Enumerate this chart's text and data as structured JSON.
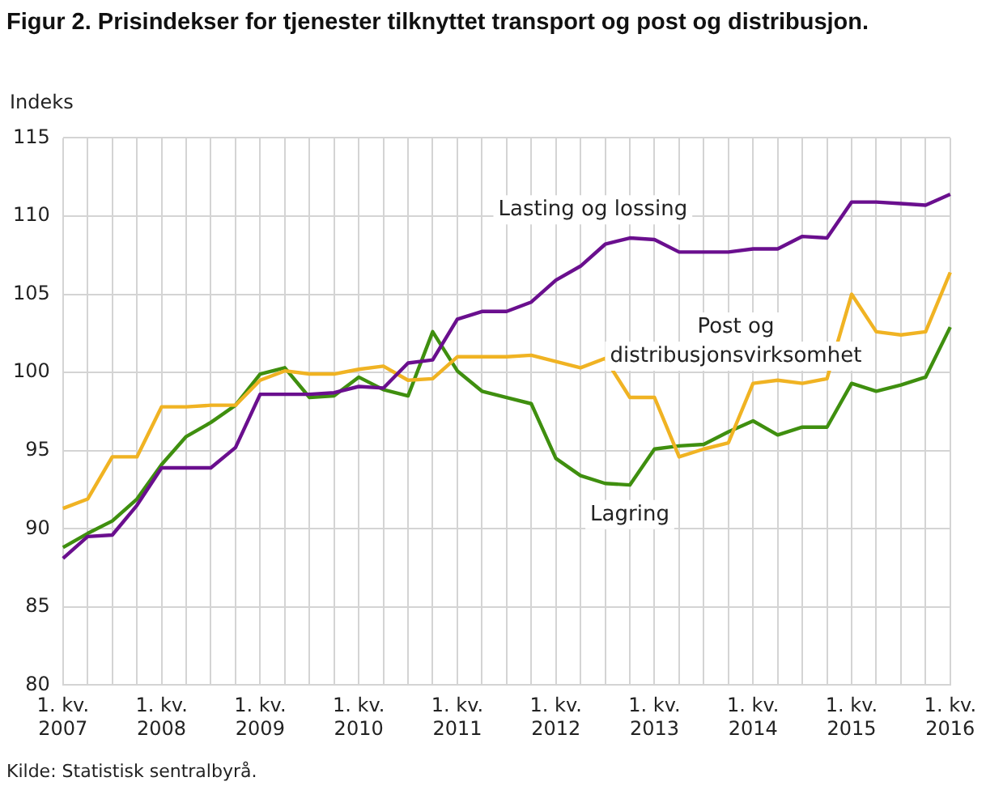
{
  "chart_data": {
    "type": "line",
    "title": "Figur 2. Prisindekser for tjenester tilknyttet transport og post og distribusjon.",
    "ylabel": "Indeks",
    "categories": [
      "1. kv.\n2007",
      null,
      null,
      null,
      "1. kv.\n2008",
      null,
      null,
      null,
      "1. kv.\n2009",
      null,
      null,
      null,
      "1. kv.\n2010",
      null,
      null,
      null,
      "1. kv.\n2011",
      null,
      null,
      null,
      "1. kv.\n2012",
      null,
      null,
      null,
      "1. kv.\n2013",
      null,
      null,
      null,
      "1. kv.\n2014",
      null,
      null,
      null,
      "1. kv.\n2015",
      null,
      null,
      null,
      "1. kv.\n2016"
    ],
    "series": [
      {
        "name": "Lasting og lossing",
        "color": "#6a0f8e",
        "values": [
          88.1,
          89.5,
          89.6,
          91.5,
          93.9,
          93.9,
          93.9,
          95.2,
          98.6,
          98.6,
          98.6,
          98.7,
          99.1,
          99.0,
          100.6,
          100.8,
          103.4,
          103.9,
          103.9,
          104.5,
          105.9,
          106.8,
          108.2,
          108.6,
          108.5,
          107.7,
          107.7,
          107.7,
          107.9,
          107.9,
          108.7,
          108.6,
          110.9,
          110.9,
          110.8,
          110.7,
          111.4
        ]
      },
      {
        "name": "Post og distribusjonsvirksomhet",
        "color": "#f0b323",
        "values": [
          91.3,
          91.9,
          94.6,
          94.6,
          97.8,
          97.8,
          97.9,
          97.9,
          99.5,
          100.1,
          99.9,
          99.9,
          100.2,
          100.4,
          99.5,
          99.6,
          101.0,
          101.0,
          101.0,
          101.1,
          100.7,
          100.3,
          100.9,
          98.4,
          98.4,
          94.6,
          95.1,
          95.5,
          99.3,
          99.5,
          99.3,
          99.6,
          105.0,
          102.6,
          102.4,
          102.6,
          106.4
        ]
      },
      {
        "name": "Lagring",
        "color": "#3f8f0f",
        "values": [
          88.8,
          89.7,
          90.5,
          91.9,
          94.1,
          95.9,
          96.8,
          97.9,
          99.9,
          100.3,
          98.4,
          98.5,
          99.7,
          98.9,
          98.5,
          102.6,
          100.1,
          98.8,
          98.4,
          98.0,
          94.5,
          93.4,
          92.9,
          92.8,
          95.1,
          95.3,
          95.4,
          96.2,
          96.9,
          96.0,
          96.5,
          96.5,
          99.3,
          98.8,
          99.2,
          99.7,
          102.9
        ]
      }
    ],
    "ylim": [
      80,
      115
    ],
    "yticks": [
      80,
      85,
      90,
      95,
      100,
      105,
      110,
      115
    ],
    "grid": true,
    "legend": false,
    "marker": "none",
    "line_style": "solid",
    "annotations": [
      "Kilde: Statistisk sentralbyrå."
    ]
  }
}
